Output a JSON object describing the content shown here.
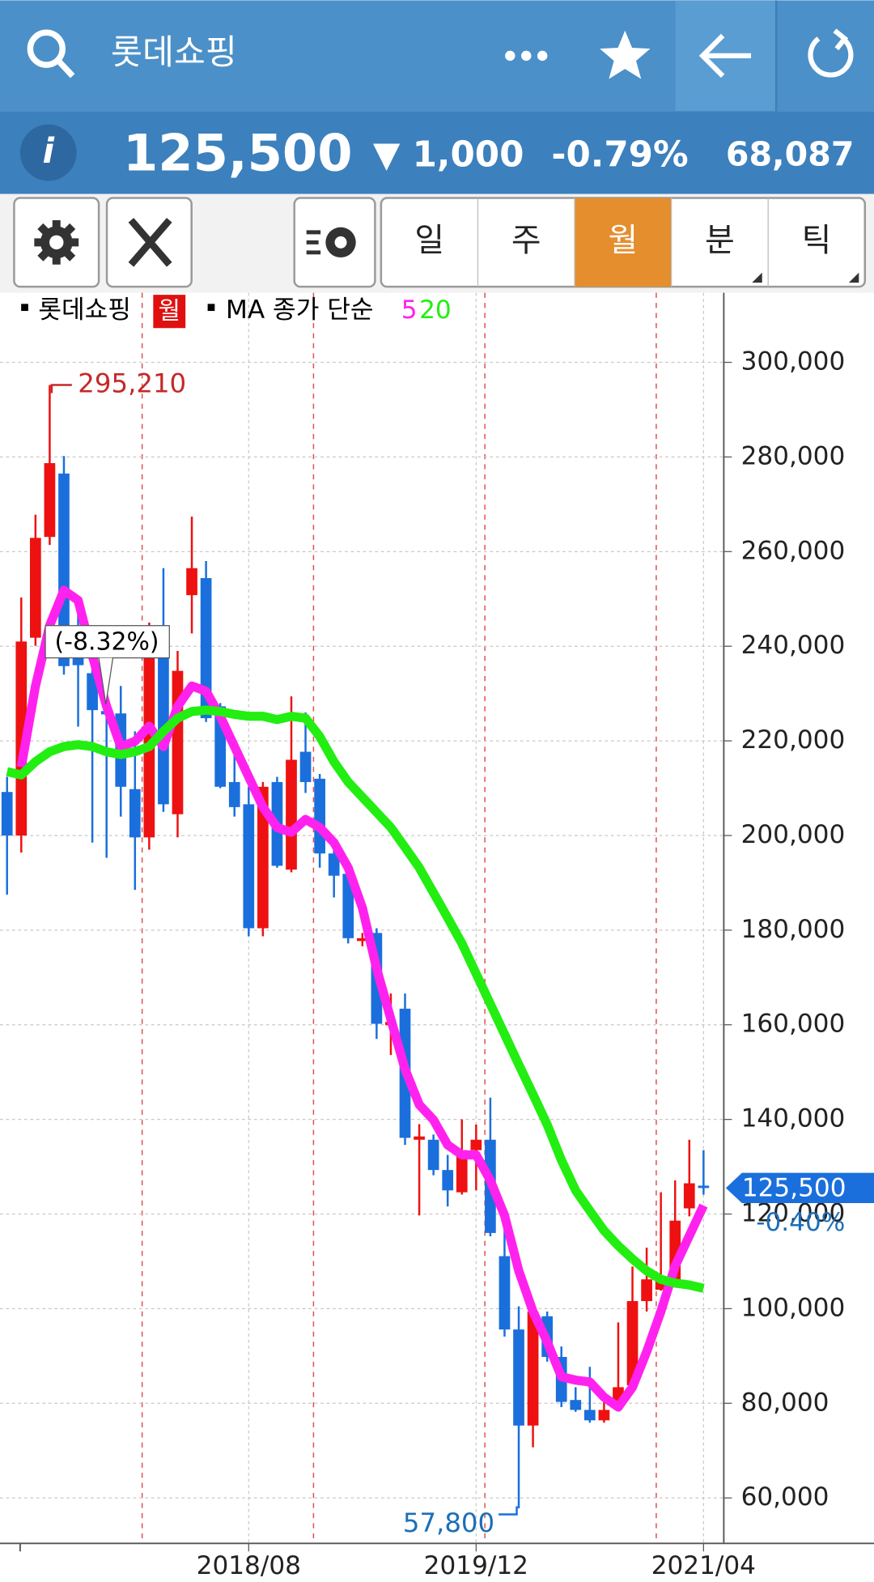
{
  "header": {
    "title": "롯데쇼핑",
    "info": "i",
    "price": "125,500",
    "change": "▼ 1,000",
    "change_pct": "-0.79%",
    "volume": "68,087"
  },
  "toolbar": {
    "periods": [
      "일",
      "주",
      "월",
      "분",
      "틱"
    ],
    "active": "월"
  },
  "chart_data": {
    "type": "candlestick",
    "legend": {
      "symbol": "롯데쇼핑",
      "period": "월",
      "ma_label": "MA 종가 단순"
    },
    "categories": [
      null,
      null,
      null,
      null,
      null,
      null,
      null,
      null,
      null,
      null,
      null,
      null,
      null,
      null,
      null,
      null,
      null,
      "2018/08",
      null,
      null,
      null,
      null,
      null,
      null,
      null,
      null,
      null,
      null,
      null,
      null,
      null,
      null,
      null,
      "2019/12",
      null,
      null,
      null,
      null,
      null,
      null,
      null,
      null,
      null,
      null,
      null,
      null,
      null,
      null,
      null,
      "2021/04"
    ],
    "open": [
      209200,
      200000,
      241800,
      263100,
      276500,
      241000,
      234300,
      226300,
      225800,
      209800,
      199600,
      244400,
      204500,
      250800,
      254400,
      227300,
      211300,
      206600,
      180400,
      211300,
      192800,
      217700,
      212000,
      196200,
      191900,
      177700,
      179400,
      159900,
      163400,
      135700,
      135700,
      129300,
      124600,
      133500,
      135700,
      111100,
      95600,
      75300,
      98400,
      89800,
      80700,
      78600,
      76400,
      79200,
      83800,
      101600,
      104000,
      105400,
      121200,
      126000
    ],
    "high": [
      212400,
      250300,
      267800,
      295210,
      280200,
      248600,
      238000,
      234300,
      231600,
      222000,
      245000,
      256500,
      239000,
      267400,
      258000,
      228000,
      217700,
      210300,
      211300,
      212400,
      229400,
      226000,
      213000,
      198500,
      193200,
      179400,
      180400,
      166600,
      166600,
      139000,
      136800,
      132500,
      140000,
      138900,
      144600,
      117200,
      100500,
      100500,
      99400,
      92000,
      83400,
      87700,
      81300,
      97100,
      108900,
      112900,
      124600,
      127100,
      135700,
      133500
    ],
    "low": [
      187500,
      196400,
      240100,
      261400,
      234000,
      223000,
      198500,
      195300,
      204000,
      188500,
      197000,
      205000,
      199600,
      242700,
      224000,
      210000,
      204000,
      178700,
      178700,
      193200,
      192200,
      209000,
      193200,
      186900,
      177200,
      176600,
      157000,
      153600,
      134600,
      119700,
      128200,
      121600,
      124100,
      125000,
      115300,
      94100,
      57800,
      70700,
      88800,
      79200,
      78200,
      75900,
      75900,
      78600,
      83000,
      99400,
      103800,
      104500,
      119500,
      124100
    ],
    "close": [
      200000,
      241000,
      262900,
      278700,
      235800,
      236000,
      226500,
      225600,
      210300,
      199600,
      244400,
      206600,
      234800,
      256500,
      224800,
      210300,
      206000,
      180400,
      210300,
      193600,
      216000,
      211300,
      196200,
      191500,
      178300,
      178300,
      160200,
      160600,
      136100,
      136400,
      129300,
      125000,
      133500,
      135700,
      116000,
      95600,
      75300,
      99400,
      89800,
      80300,
      78600,
      76400,
      78600,
      83400,
      101600,
      106200,
      105800,
      118600,
      126500,
      125500
    ],
    "up_color": "#ee1111",
    "down_color": "#1a6fdc",
    "series": [
      {
        "name": "5",
        "color": "#ff22ee",
        "values": [
          null,
          214500,
          231600,
          244400,
          251800,
          249700,
          238000,
          227300,
          218800,
          219900,
          223100,
          218800,
          227300,
          231600,
          230500,
          225200,
          218800,
          212400,
          206000,
          201700,
          200700,
          203400,
          201700,
          198500,
          193200,
          184700,
          171900,
          161200,
          150600,
          143100,
          139900,
          134600,
          132500,
          132500,
          127100,
          119700,
          108000,
          99400,
          93000,
          85600,
          84900,
          84500,
          81300,
          79200,
          83400,
          90900,
          99400,
          109000,
          115400,
          121800
        ]
      },
      {
        "name": "20",
        "color": "#22ee11",
        "values": [
          213500,
          212800,
          215600,
          217700,
          218800,
          219200,
          218800,
          217700,
          217100,
          217700,
          218800,
          222000,
          224800,
          226200,
          226500,
          226200,
          225600,
          225200,
          225200,
          224500,
          225200,
          224800,
          220900,
          215600,
          211300,
          208100,
          204900,
          201700,
          197500,
          193200,
          187900,
          182600,
          177200,
          170800,
          164400,
          158000,
          151600,
          145300,
          138900,
          131400,
          125000,
          120700,
          116500,
          113300,
          110500,
          108000,
          106200,
          105400,
          105000,
          104300
        ]
      }
    ],
    "ylim": [
      50400,
      314700
    ],
    "yticks": [
      {
        "value": 60000,
        "label": "60,000"
      },
      {
        "value": 80000,
        "label": "80,000"
      },
      {
        "value": 100000,
        "label": "100,000"
      },
      {
        "value": 120000,
        "label": "120,000"
      },
      {
        "value": 140000,
        "label": "140,000"
      },
      {
        "value": 160000,
        "label": "160,000"
      },
      {
        "value": 180000,
        "label": "180,000"
      },
      {
        "value": 200000,
        "label": "200,000"
      },
      {
        "value": 220000,
        "label": "220,000"
      },
      {
        "value": 240000,
        "label": "240,000"
      },
      {
        "value": 260000,
        "label": "260,000"
      },
      {
        "value": 280000,
        "label": "280,000"
      },
      {
        "value": 300000,
        "label": "300,000"
      }
    ],
    "grid": true,
    "high_label": {
      "value": 295210,
      "label": "295,210"
    },
    "low_label": {
      "value": 57800,
      "label": "57,800"
    },
    "last_price": {
      "value": 125500,
      "label": "125,500"
    },
    "last_change": "-0.40%",
    "tooltip": "(-8.32%)"
  }
}
